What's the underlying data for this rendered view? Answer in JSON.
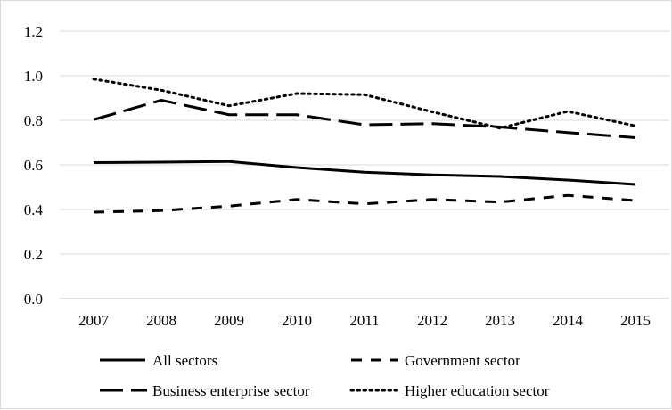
{
  "chart_data": {
    "type": "line",
    "title": "",
    "xlabel": "",
    "ylabel": "",
    "x": [
      "2007",
      "2008",
      "2009",
      "2010",
      "2011",
      "2012",
      "2013",
      "2014",
      "2015"
    ],
    "ylim": [
      0.0,
      1.2
    ],
    "yticks": [
      "0.0",
      "0.2",
      "0.4",
      "0.6",
      "0.8",
      "1.0",
      "1.2"
    ],
    "grid": "horizontal",
    "legend_position": "bottom",
    "series": [
      {
        "name": "All sectors",
        "style": "solid",
        "values": [
          0.61,
          0.612,
          0.615,
          0.588,
          0.567,
          0.555,
          0.548,
          0.532,
          0.512
        ]
      },
      {
        "name": "Government sector",
        "style": "dashed",
        "values": [
          0.388,
          0.395,
          0.415,
          0.445,
          0.425,
          0.445,
          0.433,
          0.463,
          0.44
        ]
      },
      {
        "name": "Business enterprise sector",
        "style": "long-dash",
        "values": [
          0.803,
          0.89,
          0.825,
          0.825,
          0.78,
          0.785,
          0.77,
          0.745,
          0.722
        ]
      },
      {
        "name": "Higher education sector",
        "style": "dotted",
        "values": [
          0.985,
          0.935,
          0.865,
          0.92,
          0.915,
          0.838,
          0.765,
          0.84,
          0.775
        ]
      }
    ]
  }
}
